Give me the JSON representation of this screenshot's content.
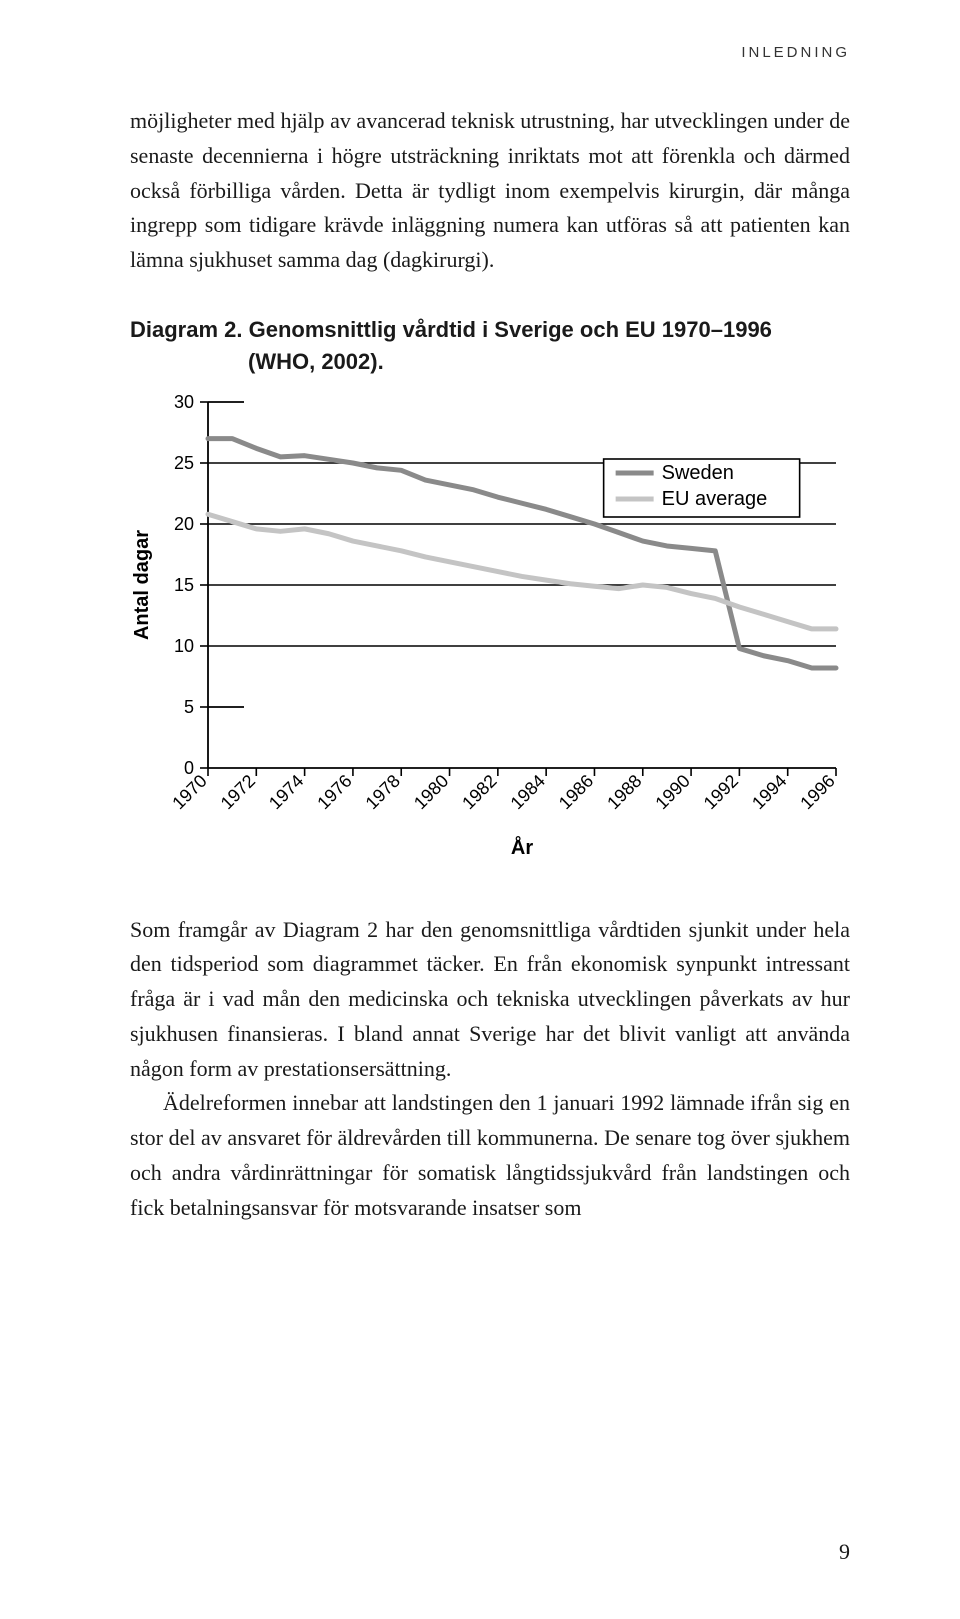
{
  "running_head": "INLEDNING",
  "para1": "möjligheter med hjälp av avancerad teknisk utrustning, har utvecklingen under de senaste decennierna i högre utsträckning inriktats mot att förenkla och därmed också förbilliga vården. Detta är tydligt inom exempelvis kirurgin, där många ingrepp som tidigare krävde inläggning numera kan utföras så att patienten kan lämna sjukhuset samma dag (dagkirurgi).",
  "caption_line1": "Diagram 2. Genomsnittlig vårdtid i Sverige och EU 1970–1996",
  "caption_line2": "(WHO, 2002).",
  "chart": {
    "type": "line",
    "y_label": "Antal dagar",
    "x_label": "År",
    "ylim": [
      0,
      30
    ],
    "ytick_step": 5,
    "y_ticks": [
      0,
      5,
      10,
      15,
      20,
      25,
      30
    ],
    "x_ticks": [
      "1970",
      "1972",
      "1974",
      "1976",
      "1978",
      "1980",
      "1982",
      "1984",
      "1986",
      "1988",
      "1990",
      "1992",
      "1994",
      "1996"
    ],
    "years": [
      1970,
      1971,
      1972,
      1973,
      1974,
      1975,
      1976,
      1977,
      1978,
      1979,
      1980,
      1981,
      1982,
      1983,
      1984,
      1985,
      1986,
      1987,
      1988,
      1989,
      1990,
      1991,
      1992,
      1993,
      1994,
      1995,
      1996
    ],
    "series": [
      {
        "name": "Sweden",
        "color": "#8a8a8a",
        "stroke_width": 5,
        "values": [
          27.0,
          27.0,
          26.2,
          25.5,
          25.6,
          25.3,
          25.0,
          24.6,
          24.4,
          23.6,
          23.2,
          22.8,
          22.2,
          21.7,
          21.2,
          20.6,
          20.0,
          19.3,
          18.6,
          18.2,
          18.0,
          17.8,
          9.8,
          9.2,
          8.8,
          8.2,
          8.2
        ]
      },
      {
        "name": "EU average",
        "color": "#c4c4c4",
        "stroke_width": 5,
        "values": [
          20.8,
          20.2,
          19.6,
          19.4,
          19.6,
          19.2,
          18.6,
          18.2,
          17.8,
          17.3,
          16.9,
          16.5,
          16.1,
          15.7,
          15.4,
          15.1,
          14.9,
          14.7,
          15.0,
          14.8,
          14.3,
          13.9,
          13.2,
          12.6,
          12.0,
          11.4,
          11.4
        ]
      }
    ],
    "background_color": "#ffffff",
    "grid_color": "#000000",
    "legend_border": "#000000",
    "axis_color": "#000000",
    "tick_fontsize": 18,
    "label_fontsize": 20,
    "legend_fontsize": 20
  },
  "para2": "Som framgår av Diagram 2 har den genomsnittliga vårdtiden sjunkit under hela den tidsperiod som diagrammet täcker. En från ekonomisk synpunkt intressant fråga är i vad mån den medicinska och tekniska utvecklingen påverkats av hur sjukhusen finansieras. I bland annat Sverige har det blivit vanligt att använda någon form av prestationsersättning.",
  "para2_indent": "Ädelreformen innebar att landstingen den 1 januari 1992 lämnade ifrån sig en stor del av ansvaret för äldrevården till kommunerna. De senare tog över sjukhem och andra vårdinrättningar för somatisk långtidssjukvård från landstingen och fick betalningsansvar för motsvarande insatser som",
  "page_number": "9"
}
